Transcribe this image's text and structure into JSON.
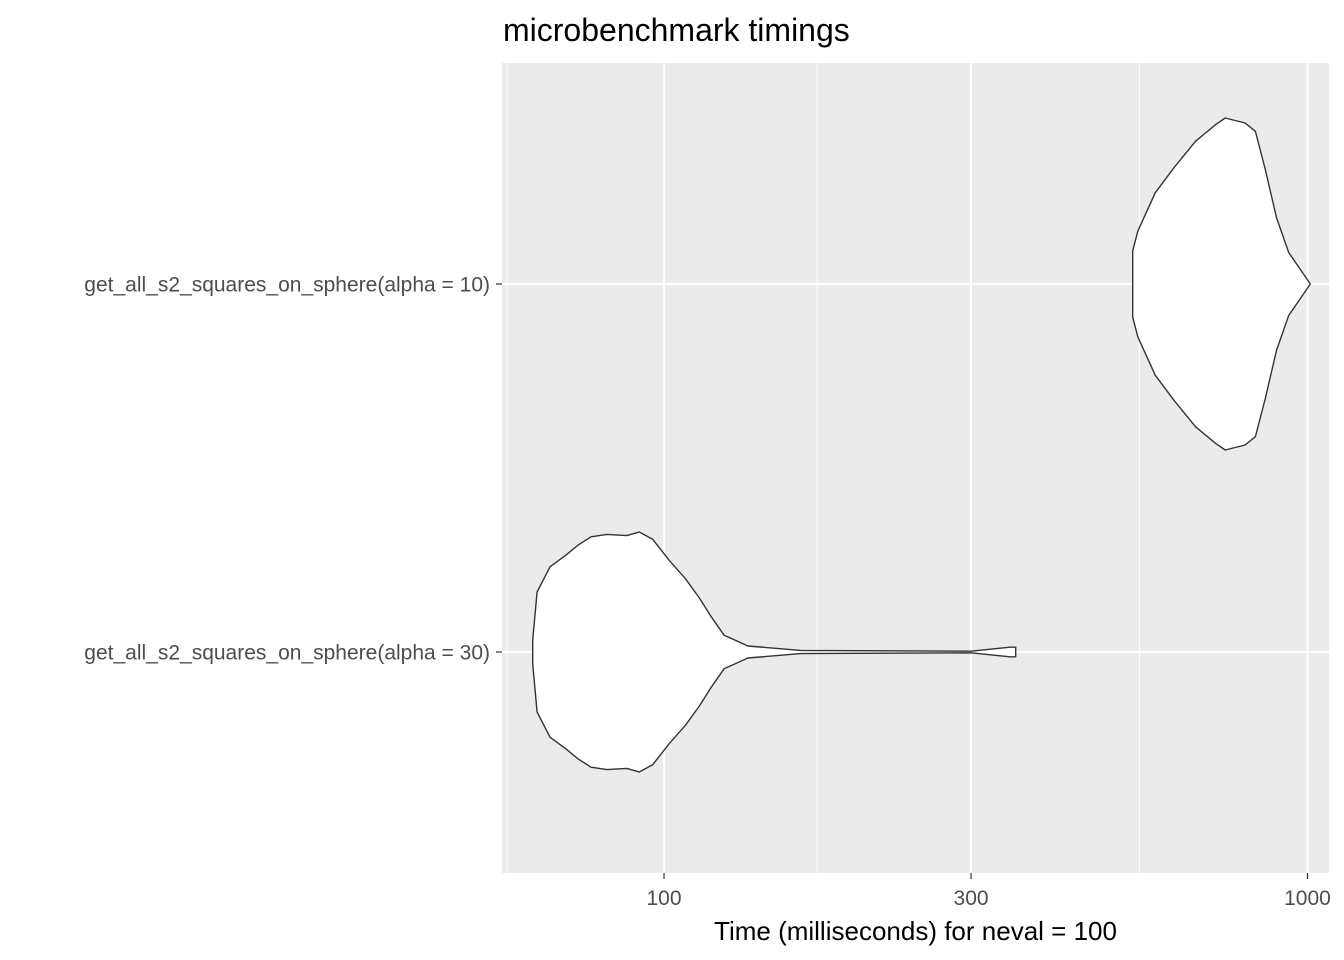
{
  "chart_data": {
    "type": "violin",
    "title": "microbenchmark timings",
    "xlabel": "Time (milliseconds) for neval = 100",
    "ylabel": "",
    "x_scale": "log10",
    "xlim": [
      56,
      1080
    ],
    "x_ticks": [
      100,
      300,
      1000
    ],
    "x_tick_labels": [
      "100",
      "300",
      "1000"
    ],
    "x_minor_ticks": [
      57,
      173,
      548
    ],
    "grid": true,
    "legend": "none",
    "categories": [
      "get_all_s2_squares_on_sphere(alpha = 30)",
      "get_all_s2_squares_on_sphere(alpha = 10)"
    ],
    "series": [
      {
        "category": "get_all_s2_squares_on_sphere(alpha = 30)",
        "fill": "#ffffff",
        "outline": "#333333",
        "profile": [
          [
            62.5,
            0.1
          ],
          [
            63.5,
            0.5
          ],
          [
            66.5,
            0.71
          ],
          [
            70.5,
            0.81
          ],
          [
            73.5,
            0.89
          ],
          [
            77,
            0.96
          ],
          [
            81.5,
            0.98
          ],
          [
            87.5,
            0.97
          ],
          [
            91.5,
            1.0
          ],
          [
            96,
            0.94
          ],
          [
            102,
            0.76
          ],
          [
            108,
            0.61
          ],
          [
            113.5,
            0.45
          ],
          [
            118.5,
            0.29
          ],
          [
            124,
            0.14
          ],
          [
            135,
            0.05
          ],
          [
            163,
            0.013
          ],
          [
            300,
            0.007
          ],
          [
            345,
            0.04
          ],
          [
            352,
            0.04
          ],
          [
            352,
            0.0
          ]
        ]
      },
      {
        "category": "get_all_s2_squares_on_sphere(alpha = 10)",
        "fill": "#ffffff",
        "outline": "#333333",
        "profile": [
          [
            535,
            0.0
          ],
          [
            535,
            0.2
          ],
          [
            545,
            0.32
          ],
          [
            580,
            0.55
          ],
          [
            620,
            0.7
          ],
          [
            670,
            0.86
          ],
          [
            720,
            0.96
          ],
          [
            745,
            1.0
          ],
          [
            800,
            0.97
          ],
          [
            830,
            0.92
          ],
          [
            860,
            0.69
          ],
          [
            895,
            0.4
          ],
          [
            935,
            0.19
          ],
          [
            1000,
            0.025
          ],
          [
            1010,
            0.0
          ]
        ]
      }
    ]
  }
}
